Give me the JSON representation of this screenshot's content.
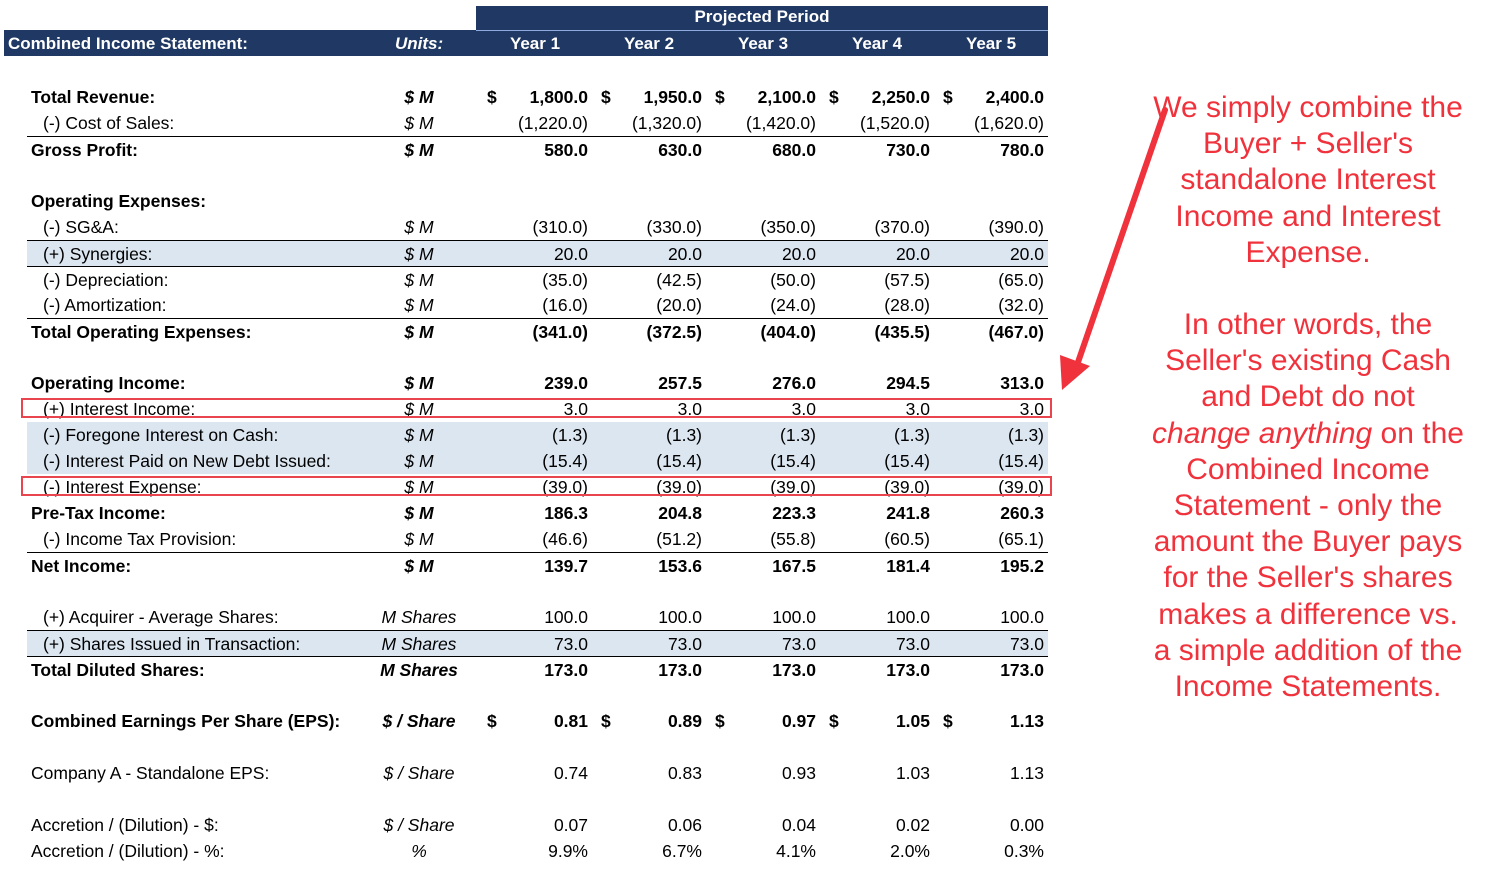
{
  "header": {
    "title": "Combined Income Statement:",
    "units_label": "Units:",
    "projected_label": "Projected Period",
    "years": [
      "Year 1",
      "Year 2",
      "Year 3",
      "Year 4",
      "Year 5"
    ]
  },
  "rows": [
    {
      "label": "Total Revenue:",
      "unit": "$ M",
      "dollar": true,
      "values": [
        "1,800.0",
        "1,950.0",
        "2,100.0",
        "2,250.0",
        "2,400.0"
      ]
    },
    {
      "label": "(-) Cost of Sales:",
      "unit": "$ M",
      "values": [
        "(1,220.0)",
        "(1,320.0)",
        "(1,420.0)",
        "(1,520.0)",
        "(1,620.0)"
      ]
    },
    {
      "label": "Gross Profit:",
      "unit": "$ M",
      "values": [
        "580.0",
        "630.0",
        "680.0",
        "730.0",
        "780.0"
      ]
    },
    {
      "label": "Operating Expenses:"
    },
    {
      "label": "(-) SG&A:",
      "unit": "$ M",
      "values": [
        "(310.0)",
        "(330.0)",
        "(350.0)",
        "(370.0)",
        "(390.0)"
      ]
    },
    {
      "label": "(+) Synergies:",
      "unit": "$ M",
      "values": [
        "20.0",
        "20.0",
        "20.0",
        "20.0",
        "20.0"
      ]
    },
    {
      "label": "(-) Depreciation:",
      "unit": "$ M",
      "values": [
        "(35.0)",
        "(42.5)",
        "(50.0)",
        "(57.5)",
        "(65.0)"
      ]
    },
    {
      "label": "(-) Amortization:",
      "unit": "$ M",
      "values": [
        "(16.0)",
        "(20.0)",
        "(24.0)",
        "(28.0)",
        "(32.0)"
      ]
    },
    {
      "label": "Total Operating Expenses:",
      "unit": "$ M",
      "values": [
        "(341.0)",
        "(372.5)",
        "(404.0)",
        "(435.5)",
        "(467.0)"
      ]
    },
    {
      "label": "Operating Income:",
      "unit": "$ M",
      "values": [
        "239.0",
        "257.5",
        "276.0",
        "294.5",
        "313.0"
      ]
    },
    {
      "label": "(+) Interest Income:",
      "unit": "$ M",
      "values": [
        "3.0",
        "3.0",
        "3.0",
        "3.0",
        "3.0"
      ]
    },
    {
      "label": "(-) Foregone Interest on Cash:",
      "unit": "$ M",
      "values": [
        "(1.3)",
        "(1.3)",
        "(1.3)",
        "(1.3)",
        "(1.3)"
      ]
    },
    {
      "label": "(-) Interest Paid on New Debt Issued:",
      "unit": "$ M",
      "values": [
        "(15.4)",
        "(15.4)",
        "(15.4)",
        "(15.4)",
        "(15.4)"
      ]
    },
    {
      "label": "(-) Interest Expense:",
      "unit": "$ M",
      "values": [
        "(39.0)",
        "(39.0)",
        "(39.0)",
        "(39.0)",
        "(39.0)"
      ]
    },
    {
      "label": "Pre-Tax Income:",
      "unit": "$ M",
      "values": [
        "186.3",
        "204.8",
        "223.3",
        "241.8",
        "260.3"
      ]
    },
    {
      "label": "(-) Income Tax Provision:",
      "unit": "$ M",
      "values": [
        "(46.6)",
        "(51.2)",
        "(55.8)",
        "(60.5)",
        "(65.1)"
      ]
    },
    {
      "label": "Net Income:",
      "unit": "$ M",
      "values": [
        "139.7",
        "153.6",
        "167.5",
        "181.4",
        "195.2"
      ]
    },
    {
      "label": "(+) Acquirer - Average Shares:",
      "unit": "M Shares",
      "values": [
        "100.0",
        "100.0",
        "100.0",
        "100.0",
        "100.0"
      ]
    },
    {
      "label": "(+) Shares Issued in Transaction:",
      "unit": "M Shares",
      "values": [
        "73.0",
        "73.0",
        "73.0",
        "73.0",
        "73.0"
      ]
    },
    {
      "label": "Total Diluted Shares:",
      "unit": "M Shares",
      "values": [
        "173.0",
        "173.0",
        "173.0",
        "173.0",
        "173.0"
      ]
    },
    {
      "label": "Combined Earnings Per Share (EPS):",
      "unit": "$ / Share",
      "dollar": true,
      "values": [
        "0.81",
        "0.89",
        "0.97",
        "1.05",
        "1.13"
      ]
    },
    {
      "label": "Company A - Standalone EPS:",
      "unit": "$ / Share",
      "values": [
        "0.74",
        "0.83",
        "0.93",
        "1.03",
        "1.13"
      ]
    },
    {
      "label": "Accretion / (Dilution) - $:",
      "unit": "$ / Share",
      "values": [
        "0.07",
        "0.06",
        "0.04",
        "0.02",
        "0.00"
      ]
    },
    {
      "label": "Accretion / (Dilution) - %:",
      "unit": "%",
      "values": [
        "9.9%",
        "6.7%",
        "4.1%",
        "2.0%",
        "0.3%"
      ]
    }
  ],
  "currency_symbol": "$",
  "annotation": {
    "paragraph1": "We simply combine the Buyer + Seller's standalone Interest Income and Interest Expense.",
    "p2_before": "In other words, the Seller's existing Cash and Debt do not ",
    "p2_italic": "change anything",
    "p2_after": " on the Combined Income Statement - only the amount the Buyer pays for the Seller's shares makes a difference vs. a simple addition of the Income Statements."
  },
  "colors": {
    "header_band": "#1f3864",
    "shaded_row": "#dce6f1",
    "highlight": "#e8454f",
    "annotation_text": "#f0323c"
  }
}
